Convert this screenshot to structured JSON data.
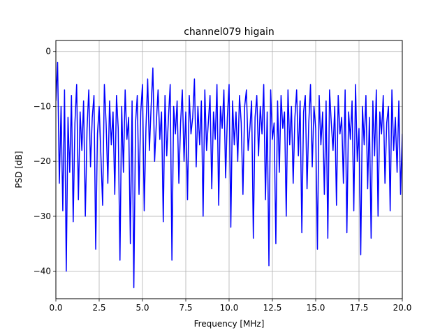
{
  "chart_data": {
    "type": "line",
    "title": "channel079 higain",
    "xlabel": "Frequency [MHz]",
    "ylabel": "PSD [dB]",
    "xlim": [
      0.0,
      20.0
    ],
    "ylim": [
      -45,
      2
    ],
    "xticks": [
      0.0,
      2.5,
      5.0,
      7.5,
      10.0,
      12.5,
      15.0,
      17.5,
      20.0
    ],
    "xtick_labels": [
      "0.0",
      "2.5",
      "5.0",
      "7.5",
      "10.0",
      "12.5",
      "15.0",
      "17.5",
      "20.0"
    ],
    "yticks": [
      0,
      -10,
      -20,
      -30,
      -40
    ],
    "ytick_labels": [
      "0",
      "−10",
      "−20",
      "−30",
      "−40"
    ],
    "grid": true,
    "series": [
      {
        "color": "#0000ff",
        "x": [
          0.0,
          0.1,
          0.2,
          0.3,
          0.4,
          0.5,
          0.6,
          0.7,
          0.8,
          0.9,
          1.0,
          1.1,
          1.2,
          1.3,
          1.4,
          1.5,
          1.6,
          1.7,
          1.8,
          1.9,
          2.0,
          2.1,
          2.2,
          2.3,
          2.4,
          2.5,
          2.6,
          2.7,
          2.8,
          2.9,
          3.0,
          3.1,
          3.2,
          3.3,
          3.4,
          3.5,
          3.6,
          3.7,
          3.8,
          3.9,
          4.0,
          4.1,
          4.2,
          4.3,
          4.4,
          4.5,
          4.6,
          4.7,
          4.8,
          4.9,
          5.0,
          5.1,
          5.2,
          5.3,
          5.4,
          5.5,
          5.6,
          5.7,
          5.8,
          5.9,
          6.0,
          6.1,
          6.2,
          6.3,
          6.4,
          6.5,
          6.6,
          6.7,
          6.8,
          6.9,
          7.0,
          7.1,
          7.2,
          7.3,
          7.4,
          7.5,
          7.6,
          7.7,
          7.8,
          7.9,
          8.0,
          8.1,
          8.2,
          8.3,
          8.4,
          8.5,
          8.6,
          8.7,
          8.8,
          8.9,
          9.0,
          9.1,
          9.2,
          9.3,
          9.4,
          9.5,
          9.6,
          9.7,
          9.8,
          9.9,
          10.0,
          10.1,
          10.2,
          10.3,
          10.4,
          10.5,
          10.6,
          10.7,
          10.8,
          10.9,
          11.0,
          11.1,
          11.2,
          11.3,
          11.4,
          11.5,
          11.6,
          11.7,
          11.8,
          11.9,
          12.0,
          12.1,
          12.2,
          12.3,
          12.4,
          12.5,
          12.6,
          12.7,
          12.8,
          12.9,
          13.0,
          13.1,
          13.2,
          13.3,
          13.4,
          13.5,
          13.6,
          13.7,
          13.8,
          13.9,
          14.0,
          14.1,
          14.2,
          14.3,
          14.4,
          14.5,
          14.6,
          14.7,
          14.8,
          14.9,
          15.0,
          15.1,
          15.2,
          15.3,
          15.4,
          15.5,
          15.6,
          15.7,
          15.8,
          15.9,
          16.0,
          16.1,
          16.2,
          16.3,
          16.4,
          16.5,
          16.6,
          16.7,
          16.8,
          16.9,
          17.0,
          17.1,
          17.2,
          17.3,
          17.4,
          17.5,
          17.6,
          17.7,
          17.8,
          17.9,
          18.0,
          18.1,
          18.2,
          18.3,
          18.4,
          18.5,
          18.6,
          18.7,
          18.8,
          18.9,
          19.0,
          19.1,
          19.2,
          19.3,
          19.4,
          19.5,
          19.6,
          19.7,
          19.8,
          19.9,
          20.0
        ],
        "y": [
          -9,
          -2,
          -24,
          -10,
          -29,
          -7,
          -40,
          -12,
          -22,
          -8,
          -31,
          -13,
          -6,
          -27,
          -11,
          -18,
          -9,
          -30,
          -14,
          -7,
          -21,
          -12,
          -8,
          -36,
          -15,
          -10,
          -19,
          -28,
          -6,
          -13,
          -24,
          -9,
          -17,
          -11,
          -26,
          -8,
          -14,
          -38,
          -10,
          -22,
          -7,
          -16,
          -12,
          -35,
          -9,
          -43,
          -13,
          -8,
          -26,
          -11,
          -6,
          -29,
          -14,
          -5,
          -18,
          -10,
          -3,
          -20,
          -13,
          -7,
          -16,
          -11,
          -31,
          -8,
          -19,
          -12,
          -6,
          -38,
          -10,
          -15,
          -9,
          -24,
          -13,
          -7,
          -20,
          -11,
          -27,
          -8,
          -15,
          -12,
          -5,
          -21,
          -10,
          -17,
          -9,
          -30,
          -7,
          -18,
          -13,
          -8,
          -25,
          -11,
          -16,
          -6,
          -28,
          -10,
          -14,
          -7,
          -23,
          -12,
          -6,
          -32,
          -9,
          -17,
          -11,
          -20,
          -8,
          -13,
          -26,
          -10,
          -7,
          -18,
          -14,
          -9,
          -34,
          -12,
          -8,
          -19,
          -10,
          -15,
          -6,
          -27,
          -11,
          -39,
          -7,
          -16,
          -13,
          -35,
          -9,
          -22,
          -8,
          -14,
          -11,
          -30,
          -7,
          -17,
          -10,
          -24,
          -12,
          -7,
          -19,
          -9,
          -33,
          -11,
          -8,
          -25,
          -13,
          -6,
          -21,
          -10,
          -14,
          -36,
          -8,
          -17,
          -11,
          -26,
          -9,
          -34,
          -7,
          -13,
          -18,
          -10,
          -28,
          -8,
          -15,
          -12,
          -24,
          -7,
          -33,
          -11,
          -16,
          -9,
          -29,
          -6,
          -20,
          -14,
          -37,
          -10,
          -17,
          -8,
          -25,
          -12,
          -34,
          -9,
          -19,
          -7,
          -30,
          -11,
          -15,
          -8,
          -24,
          -13,
          -10,
          -29,
          -7,
          -18,
          -12,
          -22,
          -9,
          -26,
          -15
        ]
      }
    ]
  }
}
